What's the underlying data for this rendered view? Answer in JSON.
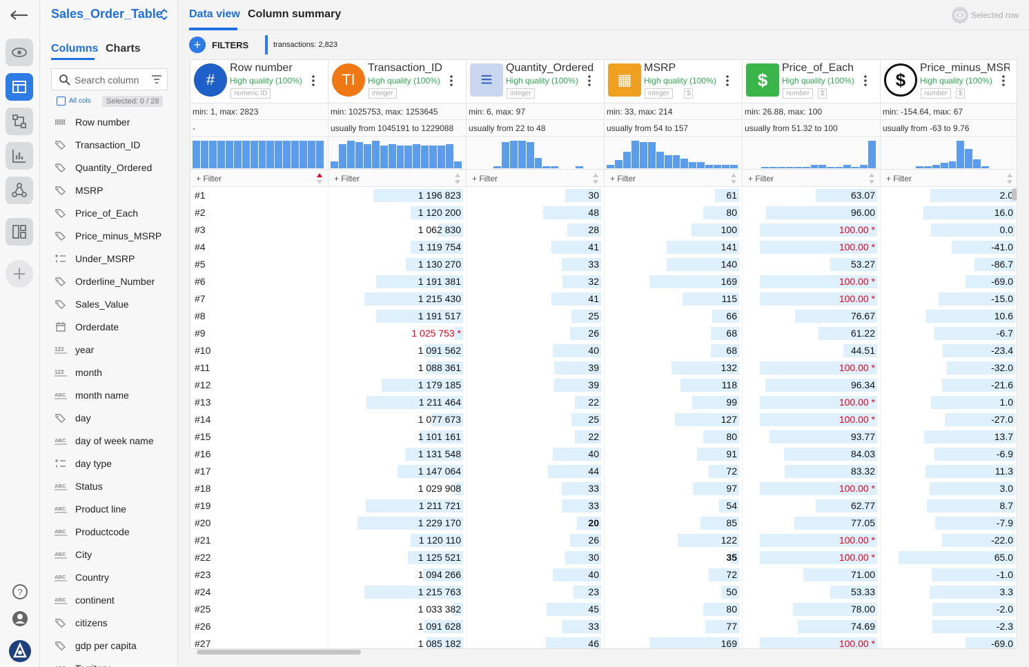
{
  "rail": {
    "items": [
      {
        "name": "back-arrow-icon"
      },
      {
        "name": "eye-icon"
      },
      {
        "name": "table-icon"
      },
      {
        "name": "flow-icon"
      },
      {
        "name": "bar-chart-icon"
      },
      {
        "name": "network-icon"
      },
      {
        "name": "dashboard-icon"
      },
      {
        "name": "plus-icon"
      },
      {
        "name": "help-icon"
      },
      {
        "name": "user-icon"
      },
      {
        "name": "logo-icon"
      }
    ]
  },
  "sidebar": {
    "table_title": "Sales_Order_Table",
    "tab_columns": "Columns",
    "tab_charts": "Charts",
    "search_placeholder": "Search column",
    "all_cols": "All cols",
    "selected": "Selected: 0 / 28",
    "columns": [
      {
        "label": "Row number",
        "icon": "row-number-icon"
      },
      {
        "label": "Transaction_ID",
        "icon": "tag-icon"
      },
      {
        "label": "Quantity_Ordered",
        "icon": "tag-icon"
      },
      {
        "label": "MSRP",
        "icon": "tag-icon"
      },
      {
        "label": "Price_of_Each",
        "icon": "tag-icon"
      },
      {
        "label": "Price_minus_MSRP",
        "icon": "tag-icon"
      },
      {
        "label": "Under_MSRP",
        "icon": "boolean-icon"
      },
      {
        "label": "Orderline_Number",
        "icon": "tag-icon"
      },
      {
        "label": "Sales_Value",
        "icon": "tag-icon"
      },
      {
        "label": "Orderdate",
        "icon": "calendar-icon"
      },
      {
        "label": "year",
        "icon": "123-icon"
      },
      {
        "label": "month",
        "icon": "123-icon"
      },
      {
        "label": "month name",
        "icon": "abc-icon"
      },
      {
        "label": "day",
        "icon": "tag-icon"
      },
      {
        "label": "day of week name",
        "icon": "abc-icon"
      },
      {
        "label": "day type",
        "icon": "boolean-icon"
      },
      {
        "label": "Status",
        "icon": "abc-icon"
      },
      {
        "label": "Product line",
        "icon": "abc-icon"
      },
      {
        "label": "Productcode",
        "icon": "abc-icon"
      },
      {
        "label": "City",
        "icon": "abc-icon"
      },
      {
        "label": "Country",
        "icon": "abc-icon"
      },
      {
        "label": "continent",
        "icon": "abc-icon"
      },
      {
        "label": "citizens",
        "icon": "tag-icon"
      },
      {
        "label": "gdp per capita",
        "icon": "tag-icon"
      },
      {
        "label": "Territory",
        "icon": "abc-icon"
      }
    ]
  },
  "main": {
    "tab_data_view": "Data view",
    "tab_column_summary": "Column summary",
    "selected_row": "Selected row",
    "filters_label": "FILTERS",
    "transactions": "transactions: 2,823",
    "filter_placeholder": "Filter",
    "columns": [
      {
        "name": "Row number",
        "quality": "High quality (100%)",
        "type": "numeric ID",
        "unit": "",
        "icon_text": "#",
        "icon_color": "#1f5fc8",
        "minmax": "min: 1, max: 2823",
        "usually": "-",
        "hist": [
          16,
          16,
          16,
          16,
          16,
          16,
          16,
          16,
          16,
          16,
          16,
          16,
          16,
          16,
          16,
          16
        ]
      },
      {
        "name": "Transaction_ID",
        "quality": "High quality (100%)",
        "type": "integer",
        "unit": "",
        "icon_text": "TI",
        "icon_color": "#f07814",
        "minmax": "min: 1025753, max: 1253645",
        "usually": "usually from 1045191 to 1229088",
        "hist": [
          4,
          14,
          16,
          15,
          14,
          16,
          13,
          14,
          13,
          13,
          14,
          13,
          13,
          13,
          14,
          4
        ]
      },
      {
        "name": "Quantity_Ordered",
        "quality": "High quality (100%)",
        "type": "integer",
        "unit": "",
        "icon_text": "≡",
        "icon_color": "#c9d6f0",
        "minmax": "min: 6, max: 97",
        "usually": "usually from 22 to 48",
        "hist": [
          0,
          0,
          0,
          1,
          15,
          16,
          16,
          15,
          6,
          1,
          1,
          0,
          0,
          1,
          0,
          0
        ]
      },
      {
        "name": "MSRP",
        "quality": "High quality (100%)",
        "type": "integer",
        "unit": "$",
        "icon_text": "▦",
        "icon_color": "#f0a020",
        "minmax": "min: 33, max: 214",
        "usually": "usually from 54 to 157",
        "hist": [
          2,
          5,
          10,
          17,
          16,
          16,
          10,
          8,
          8,
          6,
          4,
          4,
          2,
          2,
          2,
          2
        ]
      },
      {
        "name": "Price_of_Each",
        "quality": "High quality (100%)",
        "type": "number",
        "unit": "$",
        "icon_text": "$",
        "icon_color": "#3ab54a",
        "minmax": "min: 26.88, max: 100",
        "usually": "usually from 51.32 to 100",
        "hist": [
          0,
          0,
          1,
          1,
          1,
          1,
          1,
          1,
          2,
          2,
          1,
          1,
          2,
          1,
          2,
          17
        ]
      },
      {
        "name": "Price_minus_MSRP",
        "quality": "High quality (100%)",
        "type": "number",
        "unit": "$",
        "icon_text": "$",
        "icon_color": "#ffffff",
        "minmax": "min: -154.64, max: 67",
        "usually": "usually from -63 to 9.76",
        "hist": [
          0,
          0,
          0,
          0,
          1,
          1,
          2,
          3,
          4,
          16,
          11,
          5,
          1,
          0,
          0,
          0
        ]
      }
    ],
    "rows": [
      {
        "n": "#1",
        "tid": "1 196 823",
        "tid_red": false,
        "q": "30",
        "q_bold": false,
        "m": "61",
        "m_bold": false,
        "p": "63.07",
        "p_red": false,
        "d": "2.0"
      },
      {
        "n": "#2",
        "tid": "1 120 200",
        "tid_red": false,
        "q": "48",
        "q_bold": false,
        "m": "80",
        "m_bold": false,
        "p": "96.00",
        "p_red": false,
        "d": "16.0"
      },
      {
        "n": "#3",
        "tid": "1 062 830",
        "tid_red": false,
        "q": "28",
        "q_bold": false,
        "m": "100",
        "m_bold": false,
        "p": "100.00 *",
        "p_red": true,
        "d": "0.0"
      },
      {
        "n": "#4",
        "tid": "1 119 754",
        "tid_red": false,
        "q": "41",
        "q_bold": false,
        "m": "141",
        "m_bold": false,
        "p": "100.00 *",
        "p_red": true,
        "d": "-41.0"
      },
      {
        "n": "#5",
        "tid": "1 130 270",
        "tid_red": false,
        "q": "33",
        "q_bold": false,
        "m": "140",
        "m_bold": false,
        "p": "53.27",
        "p_red": false,
        "d": "-86.7"
      },
      {
        "n": "#6",
        "tid": "1 191 381",
        "tid_red": false,
        "q": "32",
        "q_bold": false,
        "m": "169",
        "m_bold": false,
        "p": "100.00 *",
        "p_red": true,
        "d": "-69.0"
      },
      {
        "n": "#7",
        "tid": "1 215 430",
        "tid_red": false,
        "q": "41",
        "q_bold": false,
        "m": "115",
        "m_bold": false,
        "p": "100.00 *",
        "p_red": true,
        "d": "-15.0"
      },
      {
        "n": "#8",
        "tid": "1 191 517",
        "tid_red": false,
        "q": "25",
        "q_bold": false,
        "m": "66",
        "m_bold": false,
        "p": "76.67",
        "p_red": false,
        "d": "10.6"
      },
      {
        "n": "#9",
        "tid": "1 025 753 *",
        "tid_red": true,
        "q": "26",
        "q_bold": false,
        "m": "68",
        "m_bold": false,
        "p": "61.22",
        "p_red": false,
        "d": "-6.7"
      },
      {
        "n": "#10",
        "tid": "1 091 562",
        "tid_red": false,
        "q": "40",
        "q_bold": false,
        "m": "68",
        "m_bold": false,
        "p": "44.51",
        "p_red": false,
        "d": "-23.4"
      },
      {
        "n": "#11",
        "tid": "1 088 361",
        "tid_red": false,
        "q": "39",
        "q_bold": false,
        "m": "132",
        "m_bold": false,
        "p": "100.00 *",
        "p_red": true,
        "d": "-32.0"
      },
      {
        "n": "#12",
        "tid": "1 179 185",
        "tid_red": false,
        "q": "39",
        "q_bold": false,
        "m": "118",
        "m_bold": false,
        "p": "96.34",
        "p_red": false,
        "d": "-21.6"
      },
      {
        "n": "#13",
        "tid": "1 211 464",
        "tid_red": false,
        "q": "22",
        "q_bold": false,
        "m": "99",
        "m_bold": false,
        "p": "100.00 *",
        "p_red": true,
        "d": "1.0"
      },
      {
        "n": "#14",
        "tid": "1 077 673",
        "tid_red": false,
        "q": "25",
        "q_bold": false,
        "m": "127",
        "m_bold": false,
        "p": "100.00 *",
        "p_red": true,
        "d": "-27.0"
      },
      {
        "n": "#15",
        "tid": "1 101 161",
        "tid_red": false,
        "q": "22",
        "q_bold": false,
        "m": "80",
        "m_bold": false,
        "p": "93.77",
        "p_red": false,
        "d": "13.7"
      },
      {
        "n": "#16",
        "tid": "1 131 548",
        "tid_red": false,
        "q": "40",
        "q_bold": false,
        "m": "91",
        "m_bold": false,
        "p": "84.03",
        "p_red": false,
        "d": "-6.9"
      },
      {
        "n": "#17",
        "tid": "1 147 064",
        "tid_red": false,
        "q": "44",
        "q_bold": false,
        "m": "72",
        "m_bold": false,
        "p": "83.32",
        "p_red": false,
        "d": "11.3"
      },
      {
        "n": "#18",
        "tid": "1 029 908",
        "tid_red": false,
        "q": "33",
        "q_bold": false,
        "m": "97",
        "m_bold": false,
        "p": "100.00 *",
        "p_red": true,
        "d": "3.0"
      },
      {
        "n": "#19",
        "tid": "1 211 721",
        "tid_red": false,
        "q": "33",
        "q_bold": false,
        "m": "54",
        "m_bold": false,
        "p": "62.77",
        "p_red": false,
        "d": "8.7"
      },
      {
        "n": "#20",
        "tid": "1 229 170",
        "tid_red": false,
        "q": "20",
        "q_bold": true,
        "m": "85",
        "m_bold": false,
        "p": "77.05",
        "p_red": false,
        "d": "-7.9"
      },
      {
        "n": "#21",
        "tid": "1 120 110",
        "tid_red": false,
        "q": "26",
        "q_bold": false,
        "m": "122",
        "m_bold": false,
        "p": "100.00 *",
        "p_red": true,
        "d": "-22.0"
      },
      {
        "n": "#22",
        "tid": "1 125 521",
        "tid_red": false,
        "q": "30",
        "q_bold": false,
        "m": "35",
        "m_bold": true,
        "p": "100.00 *",
        "p_red": true,
        "d": "65.0"
      },
      {
        "n": "#23",
        "tid": "1 094 266",
        "tid_red": false,
        "q": "40",
        "q_bold": false,
        "m": "72",
        "m_bold": false,
        "p": "71.00",
        "p_red": false,
        "d": "-1.0"
      },
      {
        "n": "#24",
        "tid": "1 215 763",
        "tid_red": false,
        "q": "23",
        "q_bold": false,
        "m": "50",
        "m_bold": false,
        "p": "53.33",
        "p_red": false,
        "d": "3.3"
      },
      {
        "n": "#25",
        "tid": "1 033 382",
        "tid_red": false,
        "q": "45",
        "q_bold": false,
        "m": "80",
        "m_bold": false,
        "p": "78.00",
        "p_red": false,
        "d": "-2.0"
      },
      {
        "n": "#26",
        "tid": "1 091 628",
        "tid_red": false,
        "q": "33",
        "q_bold": false,
        "m": "77",
        "m_bold": false,
        "p": "74.69",
        "p_red": false,
        "d": "-2.3"
      },
      {
        "n": "#27",
        "tid": "1 085 182",
        "tid_red": false,
        "q": "46",
        "q_bold": false,
        "m": "169",
        "m_bold": false,
        "p": "100.00 *",
        "p_red": true,
        "d": "-69.0"
      }
    ]
  }
}
